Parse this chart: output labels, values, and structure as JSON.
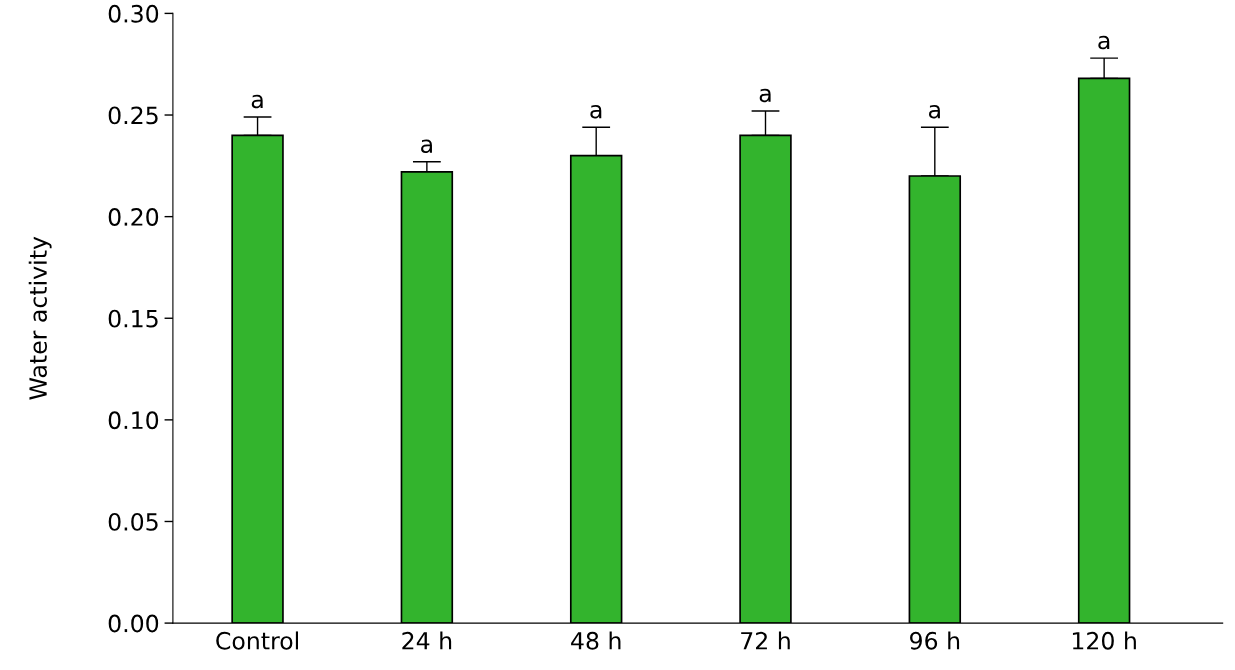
{
  "chart_data": {
    "type": "bar",
    "ylabel": "Water activity",
    "categories": [
      "Control",
      "24 h",
      "48 h",
      "72 h",
      "96 h",
      "120 h"
    ],
    "values": [
      0.24,
      0.222,
      0.23,
      0.24,
      0.22,
      0.268
    ],
    "errors": [
      [
        0.24,
        0.249
      ],
      [
        0.222,
        0.227
      ],
      [
        0.23,
        0.244
      ],
      [
        0.24,
        0.252
      ],
      [
        0.22,
        0.244
      ],
      [
        0.268,
        0.278
      ]
    ],
    "color": "#33b42d",
    "ylim": [
      0,
      0.3
    ],
    "yticks": [
      {
        "value": 0,
        "label": "0.00"
      },
      {
        "value": 0.05,
        "label": "0.05"
      },
      {
        "value": 0.1,
        "label": "0.10"
      },
      {
        "value": 0.15,
        "label": "0.15"
      },
      {
        "value": 0.2,
        "label": "0.20"
      },
      {
        "value": 0.25,
        "label": "0.25"
      },
      {
        "value": 0.3,
        "label": "0.30"
      }
    ],
    "annotations": [
      "a",
      "a",
      "a",
      "a",
      "a",
      "a"
    ],
    "grid": false,
    "legend": false
  }
}
